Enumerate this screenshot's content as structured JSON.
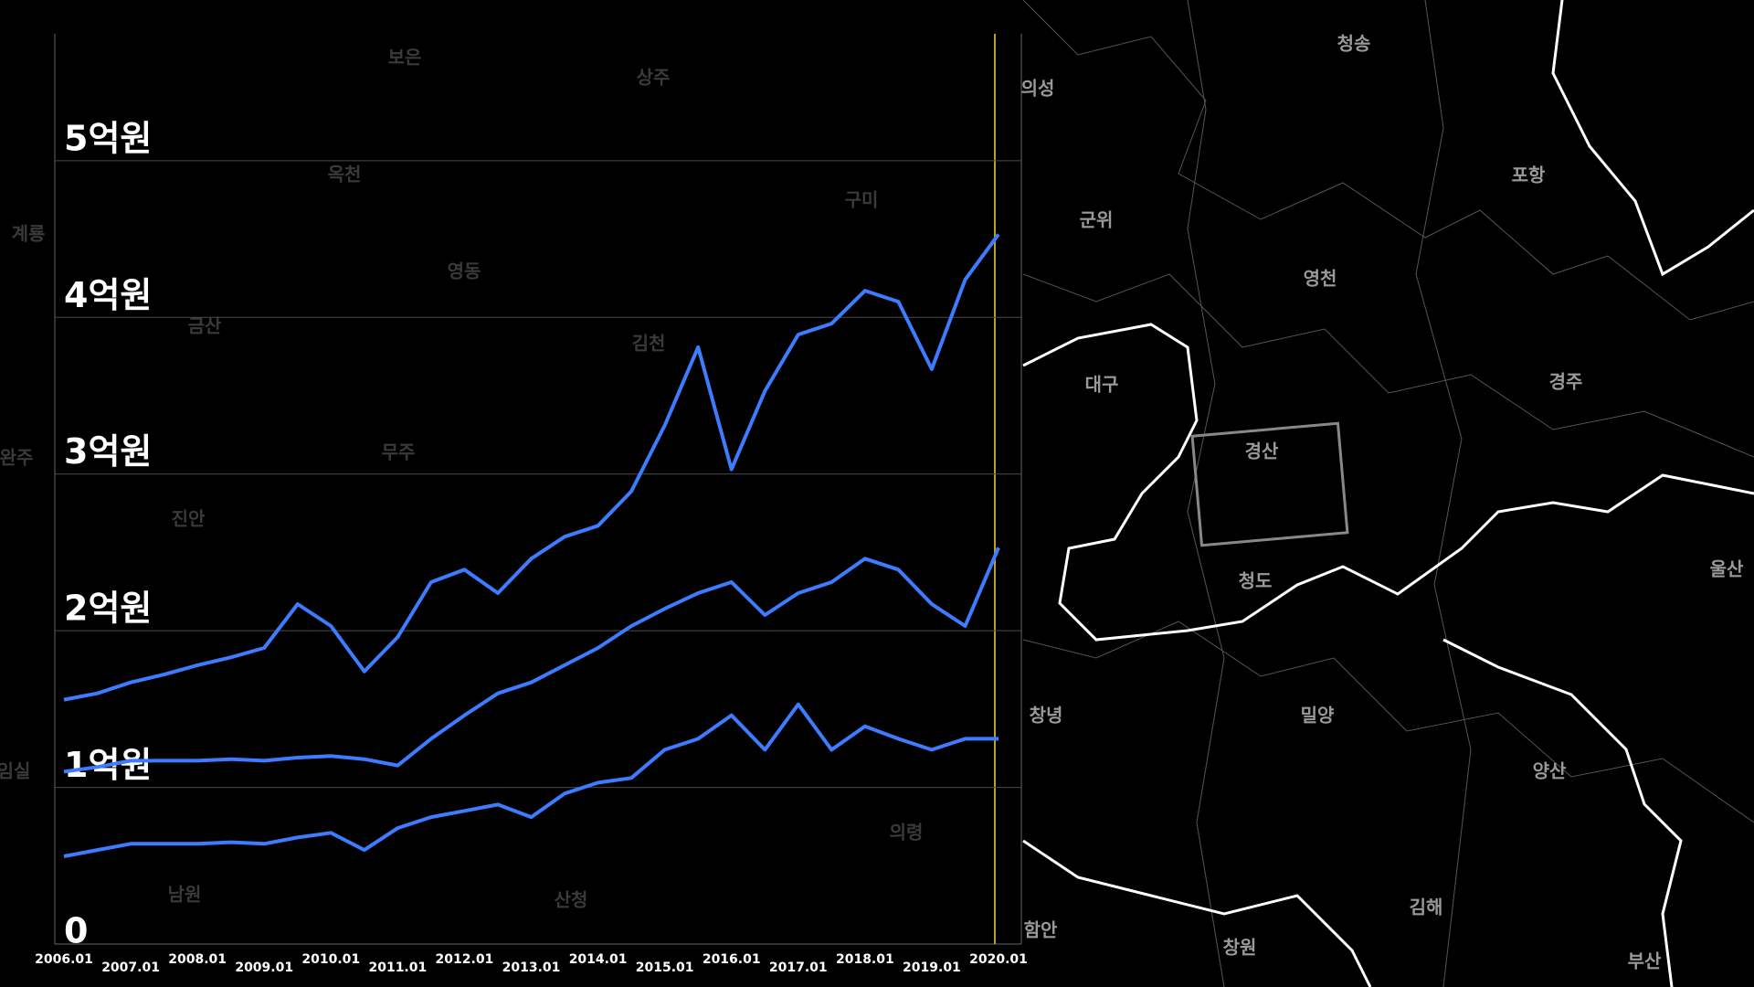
{
  "chart_data": {
    "type": "line",
    "categories": [
      "2006.01",
      null,
      "2007.01",
      null,
      "2008.01",
      null,
      "2009.01",
      null,
      "2010.01",
      null,
      "2011.01",
      null,
      "2012.01",
      null,
      "2013.01",
      null,
      "2014.01",
      null,
      "2015.01",
      null,
      "2016.01",
      null,
      "2017.01",
      null,
      "2018.01",
      null,
      "2019.01",
      null,
      "2020.01"
    ],
    "series": [
      {
        "color": "#3d7bff",
        "values": [
          1.56,
          1.6,
          1.67,
          1.72,
          1.78,
          1.83,
          1.89,
          2.17,
          2.03,
          1.74,
          1.96,
          2.31,
          2.39,
          2.24,
          2.46,
          2.6,
          2.67,
          2.89,
          3.31,
          3.81,
          3.03,
          3.53,
          3.89,
          3.96,
          4.17,
          4.1,
          3.67,
          4.24,
          4.53
        ]
      },
      {
        "color": "#3d7bff",
        "values": [
          1.1,
          1.13,
          1.17,
          1.17,
          1.17,
          1.18,
          1.17,
          1.19,
          1.2,
          1.18,
          1.14,
          1.31,
          1.46,
          1.6,
          1.67,
          1.78,
          1.89,
          2.03,
          2.14,
          2.24,
          2.31,
          2.1,
          2.24,
          2.31,
          2.46,
          2.39,
          2.17,
          2.03,
          2.53
        ]
      },
      {
        "color": "#3d7bff",
        "values": [
          0.56,
          0.6,
          0.64,
          0.64,
          0.64,
          0.65,
          0.64,
          0.68,
          0.71,
          0.6,
          0.74,
          0.81,
          0.85,
          0.89,
          0.81,
          0.96,
          1.03,
          1.06,
          1.24,
          1.31,
          1.46,
          1.24,
          1.53,
          1.24,
          1.39,
          1.31,
          1.24,
          1.31,
          1.31
        ]
      }
    ],
    "ylim": [
      0,
      5.81
    ],
    "yticks": [
      0,
      {
        "value": 1,
        "label": "1억원"
      },
      {
        "value": 2,
        "label": "2억원"
      },
      {
        "value": 3,
        "label": "3억원"
      },
      {
        "value": 4,
        "label": "4억원"
      },
      {
        "value": 5,
        "label": "5억원"
      }
    ],
    "grid": true
  },
  "map": {
    "labels": [
      "청송",
      "의성",
      "군위",
      "포항",
      "영천",
      "대구",
      "경주",
      "경산",
      "청도",
      "울산",
      "창녕",
      "밀양",
      "양산",
      "김해",
      "창원",
      "부산",
      "함안"
    ],
    "dim_labels": [
      "보은",
      "상주",
      "옥천",
      "구미",
      "영동",
      "금산",
      "김천",
      "무주",
      "진안",
      "의령",
      "산청",
      "남원",
      "계룡",
      "완주",
      "임실"
    ]
  }
}
